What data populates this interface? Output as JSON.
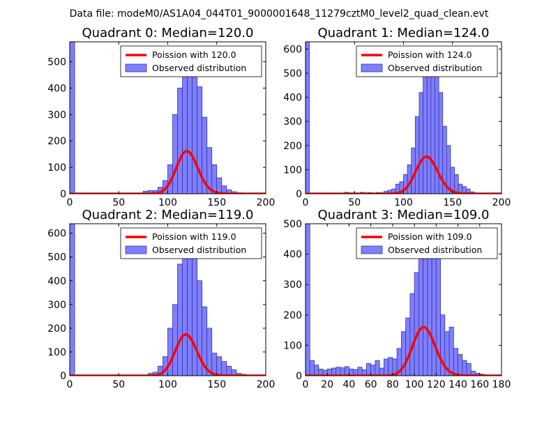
{
  "suptitle": "Data file: modeM0/AS1A04_044T01_9000001648_11279cztM0_level2_quad_clean.evt",
  "colors": {
    "bar_fill": "#7f7fff",
    "bar_edge": "#3535a0",
    "poisson_line": "#ff0000",
    "legend_edge": "#000000"
  },
  "chart_data": [
    {
      "type": "bar",
      "title": "Quadrant 0: Median=120.0",
      "xlim": [
        0,
        200
      ],
      "ylim": [
        0,
        575
      ],
      "xticks": [
        0,
        50,
        100,
        150,
        200
      ],
      "yticks": [
        0,
        100,
        200,
        300,
        400,
        500
      ],
      "bin_width": 5,
      "bins": [
        [
          0,
          575
        ],
        [
          75,
          10
        ],
        [
          80,
          12
        ],
        [
          85,
          12
        ],
        [
          90,
          25
        ],
        [
          95,
          50
        ],
        [
          100,
          110
        ],
        [
          105,
          300
        ],
        [
          110,
          400
        ],
        [
          115,
          535
        ],
        [
          120,
          505
        ],
        [
          125,
          470
        ],
        [
          130,
          405
        ],
        [
          135,
          290
        ],
        [
          140,
          175
        ],
        [
          145,
          110
        ],
        [
          150,
          60
        ],
        [
          155,
          30
        ],
        [
          160,
          15
        ],
        [
          165,
          8
        ],
        [
          170,
          4
        ],
        [
          175,
          2
        ],
        [
          180,
          1
        ]
      ],
      "poisson": {
        "mean": 120,
        "scale": 4440
      },
      "legend": [
        {
          "kind": "line",
          "label": "Poission with 120.0"
        },
        {
          "kind": "patch",
          "label": "Observed distribution"
        }
      ]
    },
    {
      "type": "bar",
      "title": "Quadrant 1: Median=124.0",
      "xlim": [
        0,
        200
      ],
      "ylim": [
        0,
        630
      ],
      "xticks": [
        0,
        50,
        100,
        150,
        200
      ],
      "yticks": [
        0,
        100,
        200,
        300,
        400,
        500,
        600
      ],
      "bin_width": 4,
      "bins": [
        [
          0,
          630
        ],
        [
          40,
          6
        ],
        [
          44,
          4
        ],
        [
          48,
          4
        ],
        [
          56,
          6
        ],
        [
          60,
          4
        ],
        [
          64,
          5
        ],
        [
          68,
          3
        ],
        [
          72,
          5
        ],
        [
          76,
          4
        ],
        [
          80,
          10
        ],
        [
          84,
          15
        ],
        [
          88,
          20
        ],
        [
          92,
          40
        ],
        [
          96,
          50
        ],
        [
          100,
          80
        ],
        [
          104,
          120
        ],
        [
          108,
          190
        ],
        [
          112,
          320
        ],
        [
          116,
          420
        ],
        [
          120,
          500
        ],
        [
          124,
          610
        ],
        [
          128,
          590
        ],
        [
          132,
          530
        ],
        [
          136,
          420
        ],
        [
          140,
          280
        ],
        [
          144,
          200
        ],
        [
          148,
          110
        ],
        [
          152,
          80
        ],
        [
          156,
          40
        ],
        [
          160,
          30
        ],
        [
          164,
          20
        ],
        [
          168,
          8
        ],
        [
          172,
          4
        ]
      ],
      "poisson": {
        "mean": 124,
        "scale": 4300
      },
      "legend": [
        {
          "kind": "line",
          "label": "Poission with 124.0"
        },
        {
          "kind": "patch",
          "label": "Observed distribution"
        }
      ]
    },
    {
      "type": "bar",
      "title": "Quadrant 2: Median=119.0",
      "xlim": [
        0,
        200
      ],
      "ylim": [
        0,
        640
      ],
      "xticks": [
        0,
        50,
        100,
        150,
        200
      ],
      "yticks": [
        0,
        100,
        200,
        300,
        400,
        500,
        600
      ],
      "bin_width": 5,
      "bins": [
        [
          0,
          640
        ],
        [
          80,
          10
        ],
        [
          85,
          15
        ],
        [
          90,
          40
        ],
        [
          95,
          80
        ],
        [
          100,
          200
        ],
        [
          105,
          300
        ],
        [
          110,
          470
        ],
        [
          115,
          545
        ],
        [
          120,
          600
        ],
        [
          125,
          515
        ],
        [
          130,
          400
        ],
        [
          135,
          290
        ],
        [
          140,
          200
        ],
        [
          145,
          95
        ],
        [
          150,
          80
        ],
        [
          155,
          60
        ],
        [
          160,
          40
        ],
        [
          165,
          25
        ],
        [
          170,
          10
        ],
        [
          175,
          6
        ],
        [
          180,
          3
        ]
      ],
      "poisson": {
        "mean": 119,
        "scale": 4750
      },
      "legend": [
        {
          "kind": "line",
          "label": "Poission with 119.0"
        },
        {
          "kind": "patch",
          "label": "Observed distribution"
        }
      ]
    },
    {
      "type": "bar",
      "title": "Quadrant 3: Median=109.0",
      "xlim": [
        0,
        180
      ],
      "ylim": [
        0,
        500
      ],
      "xticks": [
        0,
        20,
        40,
        60,
        80,
        100,
        120,
        140,
        160,
        180
      ],
      "yticks": [
        0,
        100,
        200,
        300,
        400,
        500
      ],
      "bin_width": 4,
      "bins": [
        [
          0,
          500
        ],
        [
          4,
          50
        ],
        [
          8,
          35
        ],
        [
          12,
          22
        ],
        [
          16,
          18
        ],
        [
          20,
          22
        ],
        [
          24,
          25
        ],
        [
          28,
          28
        ],
        [
          32,
          26
        ],
        [
          36,
          30
        ],
        [
          40,
          22
        ],
        [
          44,
          20
        ],
        [
          48,
          28
        ],
        [
          52,
          20
        ],
        [
          56,
          40
        ],
        [
          60,
          35
        ],
        [
          64,
          50
        ],
        [
          68,
          25
        ],
        [
          72,
          55
        ],
        [
          76,
          60
        ],
        [
          80,
          55
        ],
        [
          84,
          90
        ],
        [
          88,
          145
        ],
        [
          92,
          190
        ],
        [
          96,
          270
        ],
        [
          100,
          340
        ],
        [
          104,
          420
        ],
        [
          108,
          460
        ],
        [
          112,
          400
        ],
        [
          116,
          480
        ],
        [
          120,
          430
        ],
        [
          124,
          200
        ],
        [
          128,
          145
        ],
        [
          132,
          160
        ],
        [
          136,
          90
        ],
        [
          140,
          70
        ],
        [
          144,
          50
        ],
        [
          148,
          40
        ],
        [
          152,
          15
        ],
        [
          156,
          8
        ],
        [
          160,
          5
        ],
        [
          164,
          3
        ],
        [
          168,
          2
        ]
      ],
      "poisson": {
        "mean": 109,
        "scale": 4180
      },
      "legend": [
        {
          "kind": "line",
          "label": "Poission with 109.0"
        },
        {
          "kind": "patch",
          "label": "Observed distribution"
        }
      ]
    }
  ]
}
